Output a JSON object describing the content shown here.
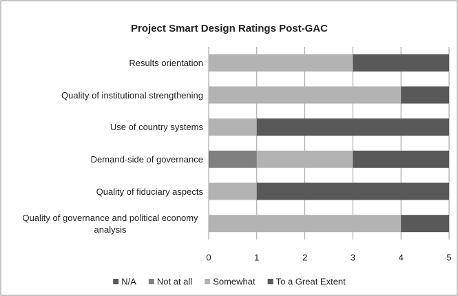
{
  "chart_data": {
    "type": "stacked-barh",
    "title": "Project Smart Design Ratings Post-GAC",
    "categories": [
      "Results orientation",
      "Quality of institutional  strengthening",
      "Use of country systems",
      "Demand-side of governance",
      "Quality of fiduciary aspects",
      "Quality of governance and political economy analysis"
    ],
    "series": [
      {
        "name": "N/A",
        "color": "#595959",
        "values": [
          0,
          0,
          0,
          0,
          0,
          0
        ]
      },
      {
        "name": "Not at all",
        "color": "#808080",
        "values": [
          0,
          0,
          0,
          1,
          0,
          0
        ]
      },
      {
        "name": "Somewhat",
        "color": "#b3b3b3",
        "values": [
          3,
          4,
          1,
          2,
          1,
          4
        ]
      },
      {
        "name": "To a Great Extent",
        "color": "#595959",
        "values": [
          2,
          1,
          4,
          2,
          4,
          1
        ]
      }
    ],
    "xlim": [
      0,
      5
    ],
    "xticks": [
      0,
      1,
      2,
      3,
      4,
      5
    ],
    "grid": true,
    "legend": "bottom"
  }
}
